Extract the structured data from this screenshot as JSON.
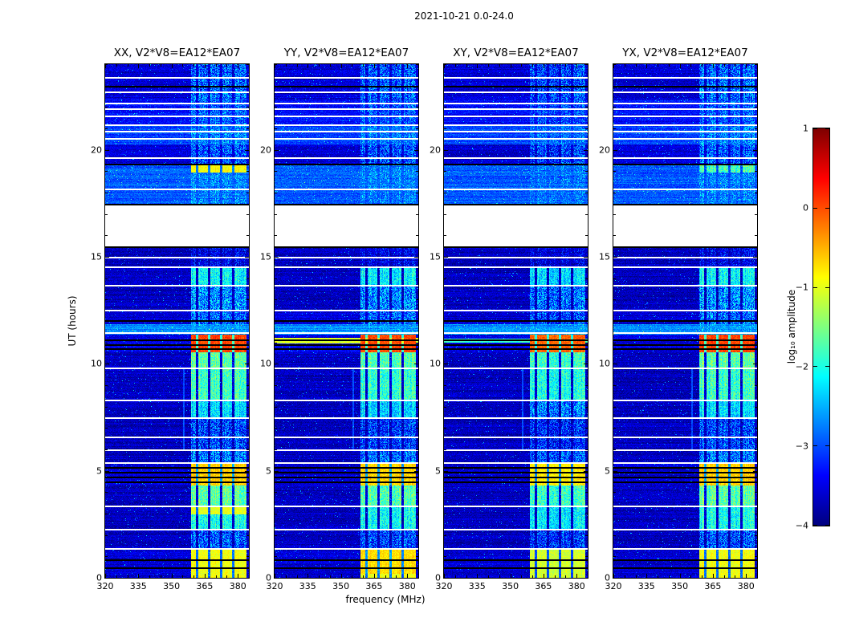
{
  "chart_data": {
    "type": "heatmap",
    "title": "2021-10-21 0.0-24.0",
    "xlabel": "frequency (MHz)",
    "ylabel": "UT (hours)",
    "xlim": [
      320,
      385
    ],
    "ylim": [
      0,
      24
    ],
    "x_ticks": [
      320,
      335,
      350,
      365,
      380
    ],
    "y_ticks": [
      0,
      5,
      10,
      15,
      20
    ],
    "colormap": "jet",
    "color_scale": {
      "label": "log₁₀ amplitude",
      "min": -4,
      "max": 1,
      "ticks": [
        1,
        0,
        -1,
        -2,
        -3,
        -4
      ],
      "tick_labels": [
        "1",
        "0",
        "−1",
        "−2",
        "−3",
        "−4"
      ]
    },
    "rfi_band": {
      "f0": 359,
      "f1": 384,
      "separators": [
        361.5,
        367,
        372.5,
        378
      ]
    },
    "data_gap_hours": [
      15.45,
      17.45
    ],
    "background_log_amp": -3.7,
    "faint_vertical_lines": [
      {
        "f": 355.6,
        "t0": 5.95,
        "t1": 9.8,
        "amp": -3.0
      }
    ],
    "time_segments": [
      {
        "t0": 0.0,
        "t1": 1.35,
        "band": -0.65,
        "bg": -3.6
      },
      {
        "t0": 1.35,
        "t1": 2.25,
        "band": -2.0,
        "bg": -3.7
      },
      {
        "t0": 2.25,
        "t1": 3.35,
        "band": -1.35,
        "bg": -3.7
      },
      {
        "t0": 3.35,
        "t1": 4.3,
        "band": -1.0,
        "bg": -3.7
      },
      {
        "t0": 4.3,
        "t1": 5.35,
        "band": -0.35,
        "bg": -3.6
      },
      {
        "t0": 5.35,
        "t1": 5.95,
        "band": -1.8,
        "bg": -3.7
      },
      {
        "t0": 5.95,
        "t1": 7.45,
        "band": -2.1,
        "bg": -3.7
      },
      {
        "t0": 7.45,
        "t1": 8.3,
        "band": -1.6,
        "bg": -3.7
      },
      {
        "t0": 8.3,
        "t1": 9.8,
        "band": -1.15,
        "bg": -3.7
      },
      {
        "t0": 9.8,
        "t1": 10.55,
        "band": -1.0,
        "bg": -3.7
      },
      {
        "t0": 10.55,
        "t1": 11.35,
        "band": 0.35,
        "bg": -3.5
      },
      {
        "t0": 11.35,
        "t1": 11.85,
        "band": -1.9,
        "bg": -2.7
      },
      {
        "t0": 11.85,
        "t1": 12.5,
        "band": -1.9,
        "bg": -3.6
      },
      {
        "t0": 12.5,
        "t1": 13.65,
        "band": -1.7,
        "bg": -3.7
      },
      {
        "t0": 13.65,
        "t1": 14.5,
        "band": -1.45,
        "bg": -3.7
      },
      {
        "t0": 14.5,
        "t1": 15.45,
        "band": -2.6,
        "bg": -3.7
      },
      {
        "t0": 17.45,
        "t1": 19.35,
        "band": -1.9,
        "bg": -2.95
      },
      {
        "t0": 19.35,
        "t1": 20.25,
        "band": -2.0,
        "bg": -3.6
      },
      {
        "t0": 20.25,
        "t1": 21.15,
        "band": -1.85,
        "bg": -3.05
      },
      {
        "t0": 21.15,
        "t1": 22.35,
        "band": -2.0,
        "bg": -3.35
      },
      {
        "t0": 22.35,
        "t1": 23.1,
        "band": -1.9,
        "bg": -3.6
      },
      {
        "t0": 23.1,
        "t1": 24.0,
        "band": -1.95,
        "bg": -3.6
      }
    ],
    "flagged_white_rows_hours": [
      1.35,
      2.25,
      3.35,
      5.35,
      5.95,
      6.55,
      7.45,
      8.3,
      9.8,
      11.45,
      12.5,
      13.65,
      14.5,
      14.95,
      18.15,
      19.6,
      20.5,
      20.85,
      21.15,
      21.55,
      21.9,
      22.15,
      22.7,
      23.35
    ],
    "dark_rows_hours": [
      0.5,
      0.85,
      4.5,
      4.72,
      4.95,
      5.18,
      10.72,
      10.92,
      11.12,
      12.05,
      15.47,
      17.47,
      19.35,
      23.0
    ],
    "panels": [
      {
        "label": "XX",
        "title": "XX, V2*V8=EA12*EA07",
        "band_offset": 0,
        "band_hotspots": [
          {
            "t0": 2.95,
            "t1": 3.3,
            "amp": -0.7
          },
          {
            "t0": 18.95,
            "t1": 19.3,
            "amp": -0.6
          }
        ],
        "full_width_rows": []
      },
      {
        "label": "YY",
        "title": "YY, V2*V8=EA12*EA07",
        "band_offset": 0,
        "band_hotspots": [
          {
            "t0": 0.2,
            "t1": 1.3,
            "amp": -0.4
          }
        ],
        "full_width_rows": [
          {
            "t0": 10.95,
            "t1": 11.2,
            "amp": -1.05
          }
        ]
      },
      {
        "label": "XY",
        "title": "XY, V2*V8=EA12*EA07",
        "band_offset": -0.15,
        "band_hotspots": [],
        "full_width_rows": [
          {
            "t0": 11.0,
            "t1": 11.18,
            "amp": -1.9
          }
        ]
      },
      {
        "label": "YX",
        "title": "YX, V2*V8=EA12*EA07",
        "band_offset": 0,
        "band_hotspots": [
          {
            "t0": 18.95,
            "t1": 19.3,
            "amp": -1.1
          }
        ],
        "full_width_rows": []
      }
    ]
  }
}
